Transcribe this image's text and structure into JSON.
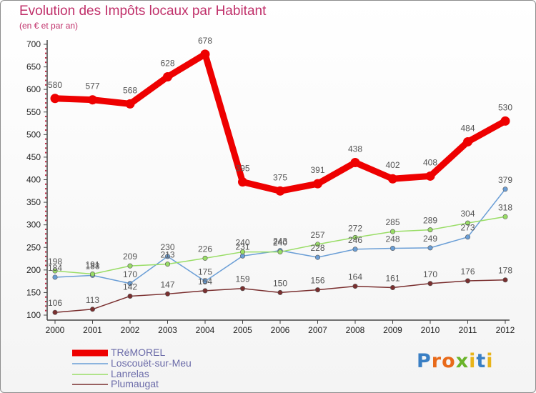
{
  "title": "Evolution des Impôts locaux par Habitant",
  "subtitle": "(en € et par an)",
  "logo": {
    "text": "Proxiti",
    "letters": [
      {
        "ch": "P",
        "color": "#3a7fc4"
      },
      {
        "ch": "r",
        "color": "#e86a1a"
      },
      {
        "ch": "o",
        "color": "#e86a1a"
      },
      {
        "ch": "x",
        "color": "#6ab42a"
      },
      {
        "ch": "i",
        "color": "#e8b41a"
      },
      {
        "ch": "t",
        "color": "#3a7fc4"
      },
      {
        "ch": "i",
        "color": "#e8b41a"
      }
    ]
  },
  "chart_data": {
    "type": "line",
    "x": [
      "2000",
      "2001",
      "2002",
      "2003",
      "2004",
      "2005",
      "2006",
      "2007",
      "2008",
      "2009",
      "2010",
      "2011",
      "2012"
    ],
    "ylim": [
      100,
      700
    ],
    "yticks": [
      "100",
      "150",
      "200",
      "250",
      "300",
      "350",
      "400",
      "450",
      "500",
      "550",
      "600",
      "650",
      "700"
    ],
    "grid": false,
    "legend_position": "bottom-left",
    "series": [
      {
        "name": "TRéMOREL",
        "color": "#ee0000",
        "label_color": "#555555",
        "values": [
          580,
          577,
          568,
          628,
          678,
          395,
          375,
          391,
          438,
          402,
          408,
          484,
          530
        ],
        "labels": [
          "580",
          "577",
          "568",
          "628",
          "678",
          "395",
          "375",
          "391",
          "438",
          "402",
          "408",
          "484",
          "530"
        ]
      },
      {
        "name": "Loscouët-sur-Meu",
        "color": "#6a9ed6",
        "label_color": "#555555",
        "values": [
          184,
          188,
          170,
          230,
          175,
          231,
          243,
          228,
          246,
          248,
          249,
          273,
          379
        ],
        "labels": [
          "184",
          "188",
          "170",
          "230",
          "175",
          "231",
          "243",
          "228",
          "246",
          "248",
          "249",
          "273",
          "379"
        ]
      },
      {
        "name": "Lanrelas",
        "color": "#99dd66",
        "label_color": "#555555",
        "values": [
          198,
          191,
          209,
          213,
          226,
          240,
          240,
          257,
          272,
          285,
          289,
          304,
          318
        ],
        "labels": [
          "198",
          "191",
          "209",
          "213",
          "226",
          "240",
          "240",
          "257",
          "272",
          "285",
          "289",
          "304",
          "318"
        ]
      },
      {
        "name": "Plumaugat",
        "color": "#7a2f2f",
        "label_color": "#555555",
        "values": [
          106,
          113,
          142,
          147,
          154,
          159,
          150,
          156,
          164,
          161,
          170,
          176,
          178
        ],
        "labels": [
          "106",
          "113",
          "142",
          "147",
          "154",
          "159",
          "150",
          "156",
          "164",
          "161",
          "170",
          "176",
          "178"
        ]
      }
    ]
  }
}
